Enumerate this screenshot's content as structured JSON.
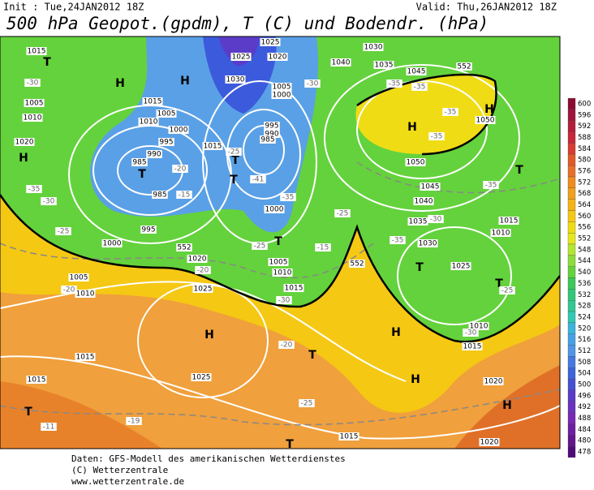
{
  "header": {
    "init": "Init : Tue,24JAN2012 18Z",
    "valid": "Valid: Thu,26JAN2012 18Z",
    "title": "500 hPa Geopot.(gpdm), T (C) und Bodendr. (hPa)"
  },
  "map": {
    "labels": [
      "H",
      "H",
      "H",
      "H",
      "H",
      "H",
      "H",
      "H",
      "H",
      "T",
      "T",
      "T",
      "T",
      "T",
      "T",
      "T",
      "T",
      "T",
      "T",
      "T",
      "1015",
      "1005",
      "1010",
      "1020",
      "1015",
      "1005",
      "1010",
      "1000",
      "995",
      "990",
      "985",
      "985",
      "995",
      "1000",
      "1005",
      "1010",
      "1015",
      "1015",
      "1025",
      "1025",
      "1020",
      "1015",
      "1020",
      "1020",
      "1015",
      "1010",
      "1025",
      "1020",
      "1025",
      "1030",
      "1005",
      "1000",
      "995",
      "990",
      "985",
      "1015",
      "1000",
      "1005",
      "1010",
      "1015",
      "1040",
      "1030",
      "1035",
      "1045",
      "1050",
      "1050",
      "1045",
      "1040",
      "1035",
      "1030",
      "1025",
      "1015",
      "1010",
      "-30",
      "-35",
      "-30",
      "-25",
      "-20",
      "-20",
      "-15",
      "-20",
      "-35",
      "-41",
      "-25",
      "-30",
      "-20",
      "-25",
      "-19",
      "-11",
      "-35",
      "-35",
      "-35",
      "-35",
      "-25",
      "-35",
      "-30",
      "-25",
      "-30",
      "-35",
      "-25",
      "-30",
      "-15",
      "552",
      "552",
      "552"
    ]
  },
  "colorbar": {
    "labels": [
      600,
      596,
      592,
      588,
      584,
      580,
      576,
      572,
      568,
      564,
      560,
      556,
      552,
      548,
      544,
      540,
      536,
      532,
      528,
      524,
      520,
      516,
      512,
      508,
      504,
      500,
      496,
      492,
      488,
      484,
      480,
      478
    ],
    "colors": [
      "#8c0a32",
      "#a0143c",
      "#b41e3c",
      "#c8283c",
      "#d83c32",
      "#e05a28",
      "#e8702a",
      "#f08c1e",
      "#f0a01e",
      "#f5b414",
      "#f5c814",
      "#f0dc14",
      "#e6e61e",
      "#b4e632",
      "#8cdc3c",
      "#64d23c",
      "#3cc85a",
      "#32c878",
      "#32c896",
      "#32c8b4",
      "#3cb4dc",
      "#46a0e6",
      "#5096e6",
      "#4678e0",
      "#3c64dc",
      "#4650d2",
      "#5a3cc8",
      "#6a32be",
      "#7828b4",
      "#6e1ea0",
      "#64148c",
      "#500a78"
    ]
  },
  "footer": {
    "lines": [
      "Daten: GFS-Modell des amerikanischen Wetterdienstes",
      "(C) Wetterzentrale",
      "www.wetterzentrale.de"
    ]
  }
}
